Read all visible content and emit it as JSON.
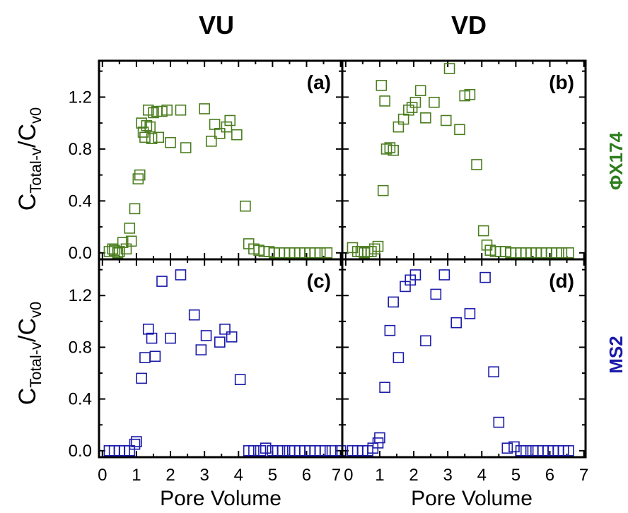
{
  "chart_data": [
    {
      "type": "scatter",
      "panel_label": "(a)",
      "column_title": "VU",
      "row_label": "ΦX174",
      "ylabel": "C",
      "ylabel_sub": "Total-v",
      "ylabel_sep": "/C",
      "ylabel_sub2": "v0",
      "xlabel": "",
      "xlim": [
        -0.1,
        7.05
      ],
      "ylim": [
        -0.05,
        1.48
      ],
      "yticks": [
        "0.0",
        "0.4",
        "0.8",
        "1.2"
      ],
      "xticks": [],
      "color": "#4a7d1e",
      "series": [
        {
          "x": [
            0.2,
            0.3,
            0.35,
            0.45,
            0.5,
            0.6,
            0.7,
            0.8,
            0.85,
            0.95,
            1.05,
            1.1,
            1.15,
            1.2,
            1.25,
            1.3,
            1.35,
            1.4,
            1.45,
            1.5,
            1.6,
            1.65,
            1.75,
            1.9,
            2.0,
            2.3,
            2.45,
            3.0,
            3.2,
            3.3,
            3.45,
            3.65,
            3.75,
            3.95,
            4.2,
            4.3,
            4.45,
            4.6,
            4.75,
            4.9,
            5.05,
            5.2,
            5.35,
            5.5,
            5.65,
            5.8,
            5.95,
            6.1,
            6.25,
            6.4,
            6.6
          ],
          "y": [
            0.01,
            0.03,
            0.02,
            0.0,
            0.01,
            0.08,
            0.03,
            0.19,
            0.09,
            0.34,
            0.57,
            0.6,
            1.0,
            0.93,
            0.89,
            0.98,
            1.1,
            0.97,
            0.88,
            1.08,
            1.09,
            0.89,
            1.09,
            1.1,
            0.85,
            1.1,
            0.81,
            1.11,
            0.86,
            0.99,
            0.92,
            0.97,
            1.02,
            0.91,
            0.36,
            0.07,
            0.03,
            0.02,
            0.01,
            0.01,
            0.0,
            0.0,
            0.0,
            0.0,
            0.0,
            0.0,
            0.0,
            0.0,
            0.0,
            0.0,
            0.0
          ]
        }
      ]
    },
    {
      "type": "scatter",
      "panel_label": "(b)",
      "column_title": "VD",
      "row_label": "",
      "ylabel": "",
      "xlabel": "",
      "xlim": [
        -0.1,
        7.05
      ],
      "ylim": [
        -0.05,
        1.48
      ],
      "yticks": [],
      "xticks": [],
      "color": "#4a7d1e",
      "series": [
        {
          "x": [
            0.2,
            0.35,
            0.45,
            0.55,
            0.65,
            0.75,
            0.85,
            0.95,
            1.05,
            1.1,
            1.15,
            1.2,
            1.3,
            1.4,
            1.55,
            1.7,
            1.85,
            1.95,
            2.05,
            2.2,
            2.35,
            2.6,
            2.95,
            3.05,
            3.35,
            3.5,
            3.65,
            3.85,
            4.05,
            4.15,
            4.25,
            4.4,
            4.55,
            4.7,
            4.85,
            5.0,
            5.15,
            5.3,
            5.45,
            5.6,
            5.75,
            5.9,
            6.05,
            6.2,
            6.35,
            6.55
          ],
          "y": [
            0.04,
            0.01,
            0.01,
            0.0,
            0.01,
            0.01,
            0.03,
            0.05,
            1.29,
            0.48,
            1.17,
            0.8,
            0.81,
            0.79,
            0.97,
            1.03,
            1.1,
            1.12,
            1.16,
            1.25,
            1.04,
            1.16,
            1.02,
            1.42,
            0.95,
            1.21,
            1.22,
            0.68,
            0.17,
            0.06,
            0.02,
            0.01,
            0.01,
            0.01,
            0.0,
            0.0,
            0.0,
            0.0,
            0.0,
            0.0,
            0.0,
            0.0,
            0.0,
            0.0,
            0.0,
            0.0
          ]
        }
      ]
    },
    {
      "type": "scatter",
      "panel_label": "(c)",
      "column_title": "",
      "row_label": "MS2",
      "ylabel": "C",
      "ylabel_sub": "Total-v",
      "ylabel_sep": "/C",
      "ylabel_sub2": "v0",
      "xlabel": "Pore Volume",
      "xlim": [
        -0.1,
        7.05
      ],
      "ylim": [
        -0.05,
        1.48
      ],
      "yticks": [
        "0.0",
        "0.4",
        "0.8",
        "1.2"
      ],
      "xticks": [
        "0",
        "1",
        "2",
        "3",
        "4",
        "5",
        "6",
        "7"
      ],
      "color": "#1a1aaa",
      "series": [
        {
          "x": [
            0.2,
            0.35,
            0.5,
            0.65,
            0.8,
            0.95,
            1.0,
            1.15,
            1.25,
            1.35,
            1.45,
            1.55,
            1.75,
            2.0,
            2.3,
            2.7,
            2.9,
            3.05,
            3.45,
            3.6,
            3.8,
            4.05,
            4.3,
            4.45,
            4.65,
            4.8,
            5.0,
            5.15,
            5.3,
            5.5,
            5.65,
            5.8,
            5.95,
            6.1,
            6.25,
            6.4,
            6.55,
            6.75,
            7.0
          ],
          "y": [
            0.0,
            0.0,
            0.0,
            0.0,
            0.0,
            0.05,
            0.07,
            0.56,
            0.72,
            0.94,
            0.87,
            0.73,
            1.31,
            0.87,
            1.36,
            1.05,
            0.78,
            0.89,
            0.84,
            0.94,
            0.88,
            0.55,
            0.0,
            0.0,
            0.0,
            0.02,
            0.0,
            0.0,
            0.0,
            0.0,
            0.0,
            0.0,
            0.0,
            0.0,
            0.0,
            0.0,
            0.0,
            0.0,
            0.0
          ]
        }
      ]
    },
    {
      "type": "scatter",
      "panel_label": "(d)",
      "column_title": "",
      "row_label": "",
      "ylabel": "",
      "xlabel": "Pore Volume",
      "xlim": [
        -0.1,
        7.05
      ],
      "ylim": [
        -0.05,
        1.48
      ],
      "yticks": [],
      "xticks": [
        "0",
        "1",
        "2",
        "3",
        "4",
        "5",
        "6",
        "7"
      ],
      "color": "#1a1aaa",
      "series": [
        {
          "x": [
            0.2,
            0.35,
            0.5,
            0.65,
            0.8,
            0.95,
            1.0,
            1.15,
            1.3,
            1.4,
            1.55,
            1.75,
            1.9,
            2.05,
            2.35,
            2.65,
            2.9,
            3.25,
            3.65,
            4.1,
            4.35,
            4.5,
            4.75,
            4.95,
            5.15,
            5.3,
            5.5,
            5.65,
            5.8,
            5.95,
            6.1,
            6.25,
            6.4,
            6.55
          ],
          "y": [
            0.0,
            0.0,
            0.0,
            0.0,
            0.02,
            0.06,
            0.1,
            0.49,
            0.93,
            1.15,
            0.72,
            1.27,
            1.32,
            1.36,
            0.85,
            1.21,
            1.36,
            0.99,
            1.06,
            1.34,
            0.61,
            0.22,
            0.02,
            0.03,
            0.0,
            0.0,
            0.0,
            0.0,
            0.0,
            0.0,
            0.0,
            0.0,
            0.0,
            0.0
          ]
        }
      ]
    }
  ],
  "colors": {
    "green": "#2e7d1e",
    "blue": "#1a1aaa",
    "axis": "#000000"
  }
}
